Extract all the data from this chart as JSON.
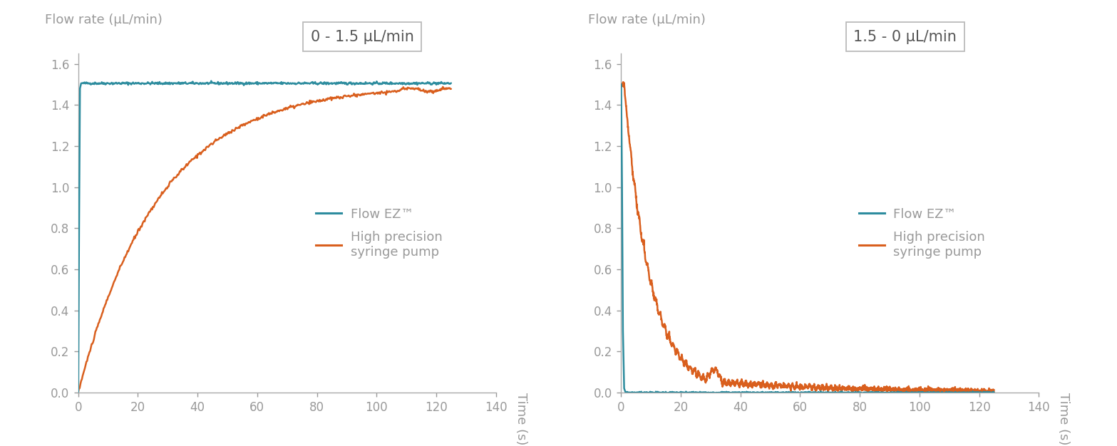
{
  "chart1_title": "0 - 1.5 μL/min",
  "chart2_title": "1.5 - 0 μL/min",
  "ylabel": "Flow rate (μL/min)",
  "xlabel": "Time (s)",
  "xlim": [
    0,
    140
  ],
  "ylim": [
    0,
    1.65
  ],
  "yticks": [
    0,
    0.2,
    0.4,
    0.6,
    0.8,
    1.0,
    1.2,
    1.4,
    1.6
  ],
  "xticks": [
    0,
    20,
    40,
    60,
    80,
    100,
    120,
    140
  ],
  "color_flowez": "#2d8c9e",
  "color_syringe": "#d95f1e",
  "legend_label1": "Flow EZ™",
  "legend_label2_line1": "High precision",
  "legend_label2_line2": "syringe pump",
  "axis_color": "#aaaaaa",
  "text_color": "#999999",
  "background_color": "#ffffff",
  "linewidth": 1.8,
  "title_fontsize": 15,
  "label_fontsize": 13,
  "tick_fontsize": 12,
  "legend_fontsize": 13
}
